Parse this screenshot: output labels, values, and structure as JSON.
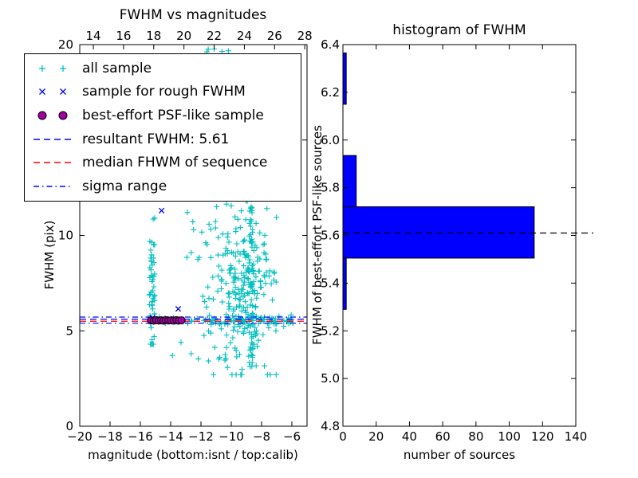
{
  "chart_data": [
    {
      "type": "scatter",
      "title": "FWHM vs magnitudes",
      "xlabel": "magnitude (bottom:isnt / top:calib)",
      "ylabel": "FWHM (pix)",
      "xlim": [
        -20,
        -5
      ],
      "ylim": [
        0,
        20
      ],
      "top_xlim": [
        13.1,
        28.15
      ],
      "grid": false,
      "legend_position": "upper left",
      "xticks": {
        "values": [
          -20,
          -18,
          -16,
          -14,
          -12,
          -10,
          -8,
          -6
        ],
        "labels": [
          "−20",
          "−18",
          "−16",
          "−14",
          "−12",
          "−10",
          "−8",
          "−6"
        ]
      },
      "yticks": {
        "values": [
          0,
          5,
          10,
          15,
          20
        ],
        "labels": [
          "0",
          "5",
          "10",
          "15",
          "20"
        ]
      },
      "top_xticks": {
        "values": [
          14,
          16,
          18,
          20,
          22,
          24,
          26,
          28
        ],
        "labels": [
          "14",
          "16",
          "18",
          "20",
          "22",
          "24",
          "26",
          "28"
        ]
      },
      "legend": [
        {
          "label": "all sample",
          "type": "plus",
          "color": "#00bfbf"
        },
        {
          "label": "sample for rough FWHM",
          "type": "cross",
          "color": "#0000ff"
        },
        {
          "label": "best-effort PSF-like sample",
          "type": "circle",
          "color": "#a000a0"
        },
        {
          "label": "resultant FWHM: 5.61",
          "type": "dashed",
          "color": "#0000ff"
        },
        {
          "label": "median FHWM of sequence",
          "type": "dashed",
          "color": "#ff0000"
        },
        {
          "label": "sigma range",
          "type": "dashdot",
          "color": "#0000ff"
        }
      ],
      "hlines": [
        {
          "y": 5.61,
          "style": "dashed",
          "color": "#0000ff",
          "name": "resultant FWHM"
        },
        {
          "y": 5.5,
          "style": "dashed",
          "color": "#ff0000",
          "name": "median FHWM of sequence"
        },
        {
          "y": 5.72,
          "style": "dashdot",
          "color": "#0000ff",
          "name": "sigma range upper"
        },
        {
          "y": 5.4,
          "style": "dashdot",
          "color": "#0000ff",
          "name": "sigma range lower"
        }
      ],
      "series": [
        {
          "name": "all sample",
          "marker": "plus",
          "color": "#00bfbf",
          "clusters": [
            {
              "n": 55,
              "x": {
                "dist": "uniform",
                "min": -15.4,
                "max": -15.05
              },
              "y": {
                "dist": "gauss",
                "mean": 6.8,
                "sd": 2.2,
                "min": 4.3,
                "max": 12.4
              }
            },
            {
              "n": 35,
              "x": {
                "dist": "uniform",
                "min": -15.4,
                "max": -11.0
              },
              "y": {
                "dist": "gauss",
                "mean": 5.55,
                "sd": 0.1,
                "min": 5.2,
                "max": 5.9
              }
            },
            {
              "n": 55,
              "x": {
                "dist": "uniform",
                "min": -11.0,
                "max": -5.85
              },
              "y": {
                "dist": "gauss",
                "mean": 5.5,
                "sd": 0.12,
                "min": 5.1,
                "max": 5.9
              }
            },
            {
              "n": 240,
              "x": {
                "dist": "gauss",
                "mean": -9.2,
                "sd": 1.0,
                "min": -11.8,
                "max": -6.9
              },
              "y": {
                "dist": "gauss",
                "mean": 7.0,
                "sd": 2.3,
                "min": 2.7,
                "max": 12.6
              }
            },
            {
              "n": 60,
              "x": {
                "dist": "gauss",
                "mean": -8.65,
                "sd": 0.12,
                "min": -9.0,
                "max": -8.3
              },
              "y": {
                "dist": "uniform",
                "min": 2.9,
                "max": 12.5
              }
            },
            {
              "n": 22,
              "x": {
                "dist": "uniform",
                "min": -13.2,
                "max": -10.8
              },
              "y": {
                "dist": "uniform",
                "min": 6.2,
                "max": 12.3
              }
            },
            {
              "n": 10,
              "x": {
                "dist": "uniform",
                "min": -14.6,
                "max": -8.2
              },
              "y": {
                "dist": "uniform",
                "min": 3.4,
                "max": 4.9
              }
            },
            {
              "n": 6,
              "x": {
                "dist": "uniform",
                "min": -12.2,
                "max": -8.4
              },
              "y": {
                "dist": "uniform",
                "min": 19.4,
                "max": 19.85
              }
            }
          ]
        },
        {
          "name": "sample for rough FWHM",
          "marker": "cross",
          "color": "#0000ff",
          "points": [
            [
              -14.6,
              11.3
            ],
            [
              -13.5,
              6.15
            ],
            [
              -15.2,
              5.68
            ],
            [
              -14.8,
              5.6
            ],
            [
              -14.45,
              5.55
            ],
            [
              -14.05,
              5.62
            ],
            [
              -13.7,
              5.58
            ],
            [
              -13.3,
              5.6
            ]
          ]
        },
        {
          "name": "best-effort PSF-like sample",
          "marker": "circle",
          "color": "#a000a0",
          "points": [
            [
              -15.3,
              5.55
            ],
            [
              -15.12,
              5.53
            ],
            [
              -14.95,
              5.56
            ],
            [
              -14.78,
              5.54
            ],
            [
              -14.62,
              5.55
            ],
            [
              -14.47,
              5.53
            ],
            [
              -14.32,
              5.56
            ],
            [
              -14.15,
              5.54
            ],
            [
              -13.98,
              5.55
            ],
            [
              -13.8,
              5.53
            ],
            [
              -13.62,
              5.56
            ],
            [
              -13.45,
              5.54
            ],
            [
              -13.28,
              5.55
            ]
          ]
        }
      ]
    },
    {
      "type": "bar",
      "orientation": "horizontal",
      "title": "histogram of FWHM",
      "xlabel": "number of sources",
      "ylabel": "FWHM of best-effort PSF-like sources",
      "xlim": [
        0,
        140
      ],
      "ylim": [
        4.8,
        6.4
      ],
      "grid": false,
      "bar_color": "#0000ff",
      "xticks": {
        "values": [
          0,
          20,
          40,
          60,
          80,
          100,
          120,
          140
        ],
        "labels": [
          "0",
          "20",
          "40",
          "60",
          "80",
          "100",
          "120",
          "140"
        ]
      },
      "yticks": {
        "values": [
          4.8,
          5.0,
          5.2,
          5.4,
          5.6,
          5.8,
          6.0,
          6.2,
          6.4
        ],
        "labels": [
          "4.8",
          "5.0",
          "5.2",
          "5.4",
          "5.6",
          "5.8",
          "6.0",
          "6.2",
          "6.4"
        ]
      },
      "bins": [
        {
          "from": 5.29,
          "to": 5.505,
          "count": 2
        },
        {
          "from": 5.505,
          "to": 5.72,
          "count": 115
        },
        {
          "from": 5.72,
          "to": 5.935,
          "count": 8
        },
        {
          "from": 5.935,
          "to": 6.15,
          "count": 0
        },
        {
          "from": 6.15,
          "to": 6.365,
          "count": 2
        }
      ],
      "median_line": {
        "y": 5.61,
        "style": "dashed",
        "color": "#000000"
      }
    }
  ]
}
